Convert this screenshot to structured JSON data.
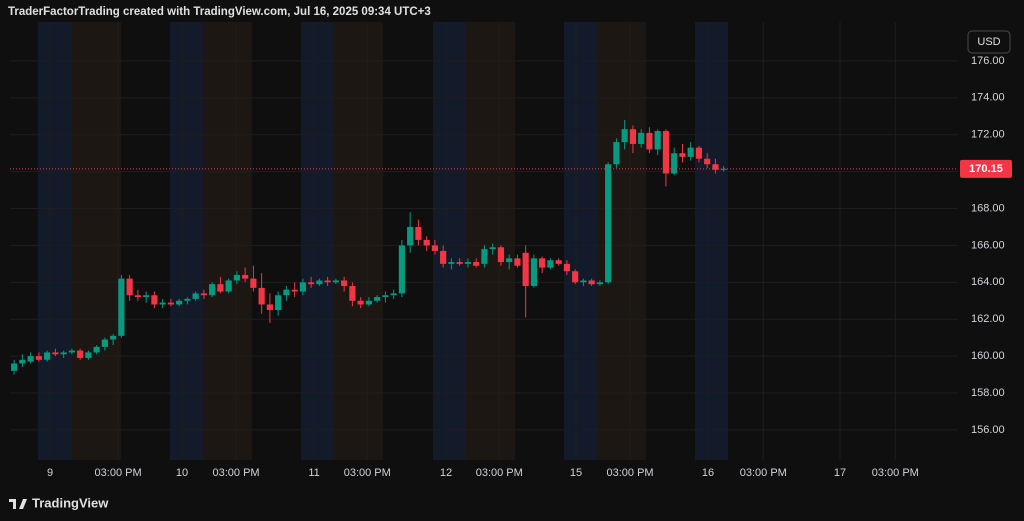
{
  "header": "TraderFactorTrading created with TradingView.com, Jul 16, 2025 09:34 UTC+3",
  "footer": "TradingView",
  "chart_data": {
    "type": "candlestick",
    "currency": "USD",
    "up_color": "#089981",
    "down_color": "#f23645",
    "grid": true,
    "last_price": 170.15,
    "ylim": [
      154.37,
      178.11
    ],
    "yticks": [
      {
        "value": 156,
        "label": "156.00"
      },
      {
        "value": 158,
        "label": "158.00"
      },
      {
        "value": 160,
        "label": "160.00"
      },
      {
        "value": 162,
        "label": "162.00"
      },
      {
        "value": 164,
        "label": "164.00"
      },
      {
        "value": 166,
        "label": "166.00"
      },
      {
        "value": 168,
        "label": "168.00"
      },
      {
        "value": 170,
        "label": "170.00"
      },
      {
        "value": 172,
        "label": "172.00"
      },
      {
        "value": 174,
        "label": "174.00"
      },
      {
        "value": 176,
        "label": "176.00"
      }
    ],
    "xlim": [
      -0.5,
      114.4
    ],
    "xticks": [
      {
        "value": 4.35,
        "label": "9"
      },
      {
        "value": 12.6,
        "label": "03:00 PM"
      },
      {
        "value": 20.35,
        "label": "10"
      },
      {
        "value": 26.9,
        "label": "03:00 PM"
      },
      {
        "value": 36.35,
        "label": "11"
      },
      {
        "value": 42.8,
        "label": "03:00 PM"
      },
      {
        "value": 52.35,
        "label": "12"
      },
      {
        "value": 58.8,
        "label": "03:00 PM"
      },
      {
        "value": 68.1,
        "label": "15"
      },
      {
        "value": 74.65,
        "label": "03:00 PM"
      },
      {
        "value": 84.1,
        "label": "16"
      },
      {
        "value": 90.8,
        "label": "03:00 PM"
      },
      {
        "value": 100.1,
        "label": "17"
      },
      {
        "value": 106.8,
        "label": "03:00 PM"
      }
    ],
    "ohlc": [
      [
        159.2,
        159.8,
        159.0,
        159.6
      ],
      [
        159.6,
        160.1,
        159.4,
        159.8
      ],
      [
        159.7,
        160.2,
        159.6,
        160.0
      ],
      [
        160.0,
        160.2,
        159.7,
        159.8
      ],
      [
        159.8,
        160.3,
        159.7,
        160.2
      ],
      [
        160.2,
        160.4,
        160.0,
        160.1
      ],
      [
        160.1,
        160.3,
        159.9,
        160.2
      ],
      [
        160.2,
        160.4,
        160.1,
        160.3
      ],
      [
        160.3,
        160.4,
        159.8,
        159.9
      ],
      [
        159.9,
        160.3,
        159.8,
        160.2
      ],
      [
        160.2,
        160.6,
        160.1,
        160.5
      ],
      [
        160.5,
        161.0,
        160.3,
        160.9
      ],
      [
        160.9,
        161.2,
        160.6,
        161.1
      ],
      [
        161.1,
        164.4,
        161.0,
        164.2
      ],
      [
        164.2,
        164.4,
        163.0,
        163.3
      ],
      [
        163.3,
        163.6,
        163.0,
        163.2
      ],
      [
        163.2,
        163.5,
        162.9,
        163.3
      ],
      [
        163.3,
        163.5,
        162.6,
        162.8
      ],
      [
        162.8,
        163.1,
        162.6,
        162.9
      ],
      [
        162.9,
        163.1,
        162.7,
        162.8
      ],
      [
        162.8,
        163.1,
        162.7,
        163.0
      ],
      [
        163.0,
        163.2,
        162.8,
        163.1
      ],
      [
        163.1,
        163.5,
        163.0,
        163.4
      ],
      [
        163.4,
        163.6,
        163.1,
        163.3
      ],
      [
        163.3,
        164.0,
        163.2,
        163.9
      ],
      [
        163.9,
        164.3,
        163.4,
        163.5
      ],
      [
        163.5,
        164.2,
        163.4,
        164.1
      ],
      [
        164.1,
        164.6,
        163.9,
        164.4
      ],
      [
        164.4,
        164.8,
        164.0,
        164.2
      ],
      [
        164.2,
        164.9,
        163.5,
        163.7
      ],
      [
        163.7,
        164.5,
        162.3,
        162.8
      ],
      [
        162.8,
        163.4,
        161.8,
        162.5
      ],
      [
        162.5,
        163.5,
        162.2,
        163.3
      ],
      [
        163.3,
        163.8,
        163.0,
        163.6
      ],
      [
        163.6,
        164.0,
        163.2,
        163.5
      ],
      [
        163.5,
        164.2,
        163.3,
        164.0
      ],
      [
        164.0,
        164.3,
        163.7,
        163.9
      ],
      [
        163.9,
        164.2,
        163.8,
        164.1
      ],
      [
        164.1,
        164.3,
        163.8,
        164.0
      ],
      [
        164.0,
        164.2,
        163.9,
        164.1
      ],
      [
        164.1,
        164.3,
        163.5,
        163.8
      ],
      [
        163.8,
        164.0,
        162.7,
        163.0
      ],
      [
        163.0,
        163.2,
        162.6,
        162.8
      ],
      [
        162.8,
        163.2,
        162.7,
        163.0
      ],
      [
        163.0,
        163.3,
        162.9,
        163.2
      ],
      [
        163.2,
        163.5,
        162.9,
        163.3
      ],
      [
        163.3,
        163.6,
        163.1,
        163.4
      ],
      [
        163.4,
        166.3,
        163.2,
        166.0
      ],
      [
        166.0,
        167.8,
        165.6,
        167.0
      ],
      [
        167.0,
        167.4,
        166.0,
        166.3
      ],
      [
        166.3,
        166.5,
        165.7,
        166.0
      ],
      [
        166.0,
        166.3,
        165.5,
        165.7
      ],
      [
        165.7,
        166.0,
        164.8,
        165.0
      ],
      [
        165.0,
        165.3,
        164.7,
        165.1
      ],
      [
        165.1,
        165.3,
        164.9,
        165.0
      ],
      [
        165.0,
        165.3,
        164.8,
        165.1
      ],
      [
        165.1,
        165.3,
        164.8,
        164.9
      ],
      [
        165.0,
        166.0,
        164.8,
        165.8
      ],
      [
        165.8,
        166.1,
        165.5,
        165.9
      ],
      [
        165.9,
        166.0,
        164.9,
        165.1
      ],
      [
        165.1,
        165.5,
        164.7,
        165.3
      ],
      [
        165.3,
        165.5,
        164.8,
        164.9
      ],
      [
        165.6,
        166.0,
        162.1,
        163.8
      ],
      [
        163.8,
        165.5,
        163.7,
        165.3
      ],
      [
        165.3,
        165.4,
        164.5,
        164.8
      ],
      [
        164.8,
        165.3,
        164.7,
        165.2
      ],
      [
        165.2,
        165.3,
        164.9,
        165.0
      ],
      [
        165.0,
        165.2,
        164.4,
        164.6
      ],
      [
        164.6,
        164.7,
        163.9,
        164.0
      ],
      [
        164.0,
        164.2,
        163.8,
        164.1
      ],
      [
        164.1,
        164.2,
        163.8,
        163.9
      ],
      [
        163.9,
        164.1,
        163.8,
        164.0
      ],
      [
        164.0,
        170.5,
        163.9,
        170.4
      ],
      [
        170.4,
        171.8,
        170.2,
        171.6
      ],
      [
        171.6,
        172.8,
        171.2,
        172.3
      ],
      [
        172.3,
        172.5,
        171.0,
        171.5
      ],
      [
        171.5,
        172.3,
        171.3,
        172.1
      ],
      [
        172.1,
        172.4,
        171.0,
        171.2
      ],
      [
        171.2,
        172.3,
        170.9,
        172.2
      ],
      [
        172.2,
        172.3,
        169.2,
        169.9
      ],
      [
        169.9,
        171.3,
        169.8,
        171.0
      ],
      [
        171.0,
        171.5,
        170.5,
        170.8
      ],
      [
        170.8,
        171.6,
        170.6,
        171.3
      ],
      [
        171.3,
        171.4,
        170.5,
        170.7
      ],
      [
        170.7,
        171.0,
        170.2,
        170.4
      ],
      [
        170.4,
        170.7,
        169.9,
        170.1
      ],
      [
        170.1,
        170.3,
        170.0,
        170.15
      ]
    ]
  }
}
